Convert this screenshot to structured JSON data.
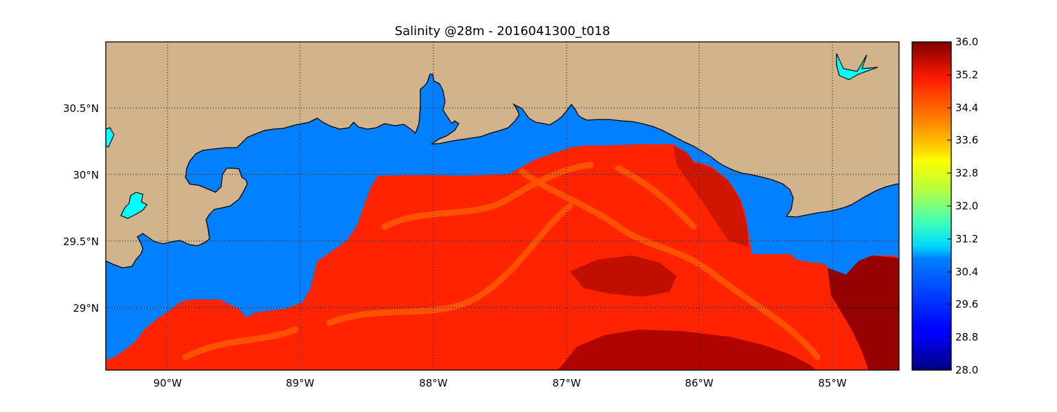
{
  "title": "Salinity @28m - 2016041300_t018",
  "map": {
    "lon_range": [
      -90.45,
      -84.5
    ],
    "lat_range": [
      28.55,
      31.0
    ],
    "lon_ticks": [
      {
        "value": -90,
        "label": "90°W"
      },
      {
        "value": -89,
        "label": "89°W"
      },
      {
        "value": -88,
        "label": "88°W"
      },
      {
        "value": -87,
        "label": "87°W"
      },
      {
        "value": -86,
        "label": "86°W"
      },
      {
        "value": -85,
        "label": "85°W"
      }
    ],
    "lat_ticks": [
      {
        "value": 30.5,
        "label": "30.5°N"
      },
      {
        "value": 30.0,
        "label": "30°N"
      },
      {
        "value": 29.5,
        "label": "29.5°N"
      },
      {
        "value": 29.0,
        "label": "29°N"
      }
    ],
    "grid": true,
    "colors": {
      "land": "#d2b48c",
      "no_data_water": "#0080ff",
      "lake": "#00ffff",
      "coastline": "#000000"
    }
  },
  "colorbar": {
    "colormap": "jet",
    "min": 28.0,
    "max": 36.0,
    "tick_labels": [
      "36.0",
      "35.2",
      "34.4",
      "33.6",
      "32.8",
      "32.0",
      "31.2",
      "30.4",
      "29.6",
      "28.8",
      "28.0"
    ]
  }
}
